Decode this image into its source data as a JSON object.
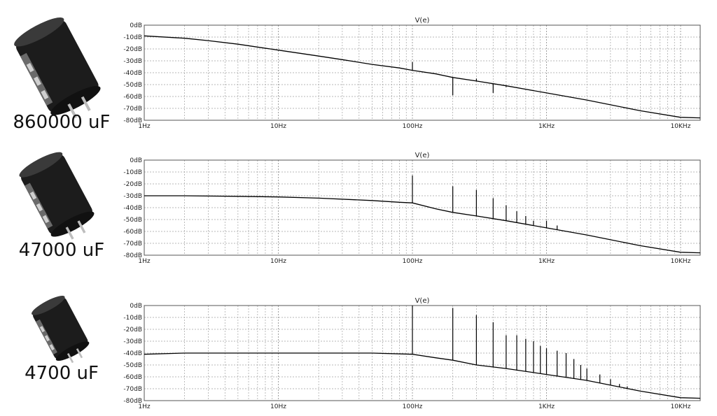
{
  "colors": {
    "trace": "#000000",
    "grid": "#a0a0a0",
    "frame": "#555555",
    "capacitor_body": "#1c1c1c"
  },
  "panels": [
    {
      "capacitor_label": "860000 uF",
      "icon": "electrolytic-capacitor-icon",
      "chart_title": "V(e)"
    },
    {
      "capacitor_label": "47000 uF",
      "icon": "electrolytic-capacitor-icon",
      "chart_title": "V(e)"
    },
    {
      "capacitor_label": "4700 uF",
      "icon": "electrolytic-capacitor-icon",
      "chart_title": "V(e)"
    }
  ],
  "chart_data": [
    {
      "type": "line",
      "title": "V(e)",
      "xscale": "log",
      "xlim": [
        1,
        14000
      ],
      "ylim": [
        -80,
        0
      ],
      "x_ticks": [
        "1Hz",
        "10Hz",
        "100Hz",
        "1KHz",
        "10KHz"
      ],
      "y_ticks": [
        "0dB",
        "-10dB",
        "-20dB",
        "-30dB",
        "-40dB",
        "-50dB",
        "-60dB",
        "-70dB",
        "-80dB"
      ],
      "grid": true,
      "series": [
        {
          "x": [
            1,
            2,
            3,
            5,
            10,
            20,
            30,
            50,
            80,
            100,
            150,
            200,
            300,
            500,
            1000,
            2000,
            3000,
            5000,
            10000,
            14000
          ],
          "y": [
            -9,
            -11,
            -13,
            -16,
            -21,
            -26,
            -29,
            -33,
            -36,
            -38,
            -41,
            -44,
            -47,
            -51,
            -57,
            -63,
            -67,
            -72,
            -77.5,
            -78
          ]
        }
      ],
      "spikes": [
        {
          "x": 100,
          "y": -31
        },
        {
          "x": 200,
          "y": -59
        },
        {
          "x": 300,
          "y": -45
        },
        {
          "x": 400,
          "y": -57
        },
        {
          "x": 500,
          "y": -52
        }
      ]
    },
    {
      "type": "line",
      "title": "V(e)",
      "xscale": "log",
      "xlim": [
        1,
        14000
      ],
      "ylim": [
        -80,
        0
      ],
      "x_ticks": [
        "1Hz",
        "10Hz",
        "100Hz",
        "1KHz",
        "10KHz"
      ],
      "y_ticks": [
        "0dB",
        "-10dB",
        "-20dB",
        "-30dB",
        "-40dB",
        "-50dB",
        "-60dB",
        "-70dB",
        "-80dB"
      ],
      "grid": true,
      "series": [
        {
          "x": [
            1,
            2,
            5,
            10,
            20,
            50,
            80,
            100,
            150,
            200,
            300,
            500,
            1000,
            2000,
            3000,
            5000,
            10000,
            14000
          ],
          "y": [
            -30,
            -30,
            -30.5,
            -31,
            -32,
            -34,
            -35.5,
            -36,
            -41,
            -44,
            -47,
            -51,
            -57,
            -63,
            -67,
            -72,
            -77.5,
            -78
          ]
        }
      ],
      "spikes": [
        {
          "x": 100,
          "y": -13
        },
        {
          "x": 200,
          "y": -22
        },
        {
          "x": 300,
          "y": -25
        },
        {
          "x": 400,
          "y": -32
        },
        {
          "x": 500,
          "y": -38
        },
        {
          "x": 600,
          "y": -43
        },
        {
          "x": 700,
          "y": -47
        },
        {
          "x": 800,
          "y": -51
        },
        {
          "x": 1000,
          "y": -51
        },
        {
          "x": 1200,
          "y": -55
        }
      ]
    },
    {
      "type": "line",
      "title": "V(e)",
      "xscale": "log",
      "xlim": [
        1,
        14000
      ],
      "ylim": [
        -80,
        0
      ],
      "x_ticks": [
        "1Hz",
        "10Hz",
        "100Hz",
        "1KHz",
        "10KHz"
      ],
      "y_ticks": [
        "0dB",
        "-10dB",
        "-20dB",
        "-30dB",
        "-40dB",
        "-50dB",
        "-60dB",
        "-70dB",
        "-80dB"
      ],
      "grid": true,
      "series": [
        {
          "x": [
            1,
            2,
            5,
            10,
            20,
            50,
            100,
            150,
            200,
            300,
            500,
            1000,
            2000,
            3000,
            5000,
            10000,
            14000
          ],
          "y": [
            -41,
            -40,
            -40,
            -40,
            -40,
            -40,
            -41,
            -44,
            -46,
            -50,
            -53,
            -58,
            -63,
            -67,
            -72,
            -77.5,
            -78
          ]
        }
      ],
      "spikes": [
        {
          "x": 100,
          "y": 0
        },
        {
          "x": 200,
          "y": -2
        },
        {
          "x": 300,
          "y": -8
        },
        {
          "x": 400,
          "y": -14
        },
        {
          "x": 500,
          "y": -25
        },
        {
          "x": 600,
          "y": -25
        },
        {
          "x": 700,
          "y": -28
        },
        {
          "x": 800,
          "y": -30
        },
        {
          "x": 900,
          "y": -34
        },
        {
          "x": 1000,
          "y": -36
        },
        {
          "x": 1200,
          "y": -38
        },
        {
          "x": 1400,
          "y": -40
        },
        {
          "x": 1600,
          "y": -45
        },
        {
          "x": 1800,
          "y": -50
        },
        {
          "x": 2000,
          "y": -53
        },
        {
          "x": 2500,
          "y": -58
        },
        {
          "x": 3000,
          "y": -62
        },
        {
          "x": 3500,
          "y": -66
        },
        {
          "x": 4000,
          "y": -68
        }
      ]
    }
  ]
}
